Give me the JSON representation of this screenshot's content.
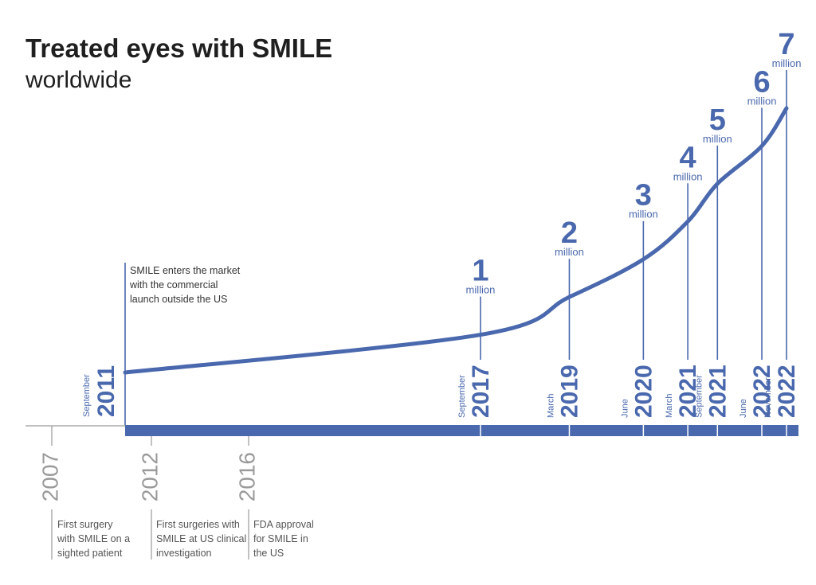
{
  "header": {
    "title": "Treated eyes with SMILE",
    "subtitle": "worldwide"
  },
  "launch": {
    "month": "September",
    "year": "2011",
    "note": [
      "SMILE enters the market",
      "with the commercial",
      "launch outside the US"
    ]
  },
  "early_events": [
    {
      "year": "2007",
      "note": [
        "First surgery",
        "with SMILE on a",
        "sighted patient"
      ]
    },
    {
      "year": "2012",
      "note": [
        "First surgeries with",
        "SMILE at US clinical",
        "investigation"
      ]
    },
    {
      "year": "2016",
      "note": [
        "FDA approval",
        "for SMILE in",
        "the US"
      ]
    }
  ],
  "colors": {
    "primary": "#4a68ad",
    "muted": "#9a9a9a",
    "text": "#1f1f1f"
  },
  "chart_data": {
    "type": "line",
    "title": "Treated eyes with SMILE",
    "subtitle": "worldwide",
    "unit": "million",
    "start": {
      "month": "September",
      "year": "2011",
      "value": 0
    },
    "milestones": [
      {
        "value": "1",
        "unit": "million",
        "month": "September",
        "year": "2017"
      },
      {
        "value": "2",
        "unit": "million",
        "month": "March",
        "year": "2019"
      },
      {
        "value": "3",
        "unit": "million",
        "month": "June",
        "year": "2020"
      },
      {
        "value": "4",
        "unit": "million",
        "month": "March",
        "year": "2021"
      },
      {
        "value": "5",
        "unit": "million",
        "month": "September",
        "year": "2021"
      },
      {
        "value": "6",
        "unit": "million",
        "month": "June",
        "year": "2022"
      },
      {
        "value": "7",
        "unit": "million",
        "month": "November",
        "year": "2022"
      }
    ],
    "grid": false,
    "legend": "none"
  }
}
